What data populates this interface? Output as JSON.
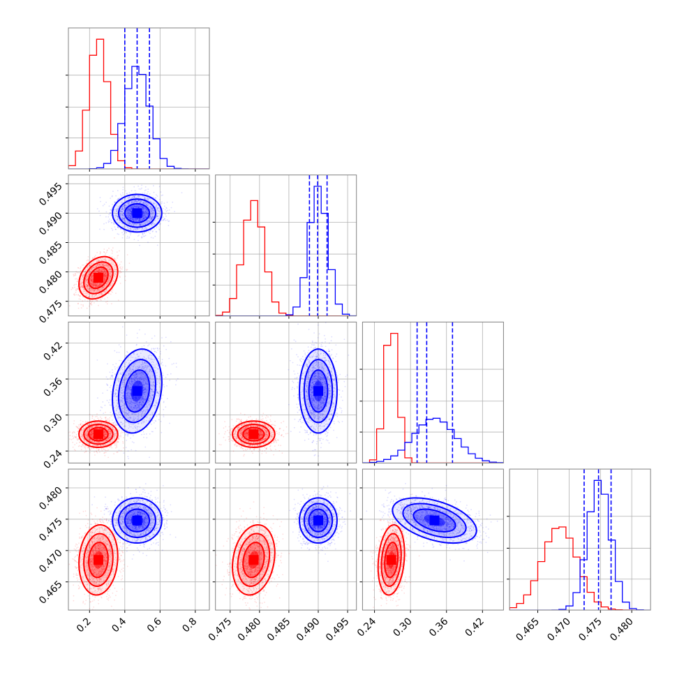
{
  "chart_data": {
    "type": "corner",
    "title": "",
    "grid": true,
    "legend": "none",
    "parameters": [
      {
        "ticks": [
          0.2,
          0.4,
          0.6,
          0.8
        ],
        "tick_labels": [
          "0.2",
          "0.4",
          "0.6",
          "0.8"
        ],
        "range": [
          0.08,
          0.88
        ]
      },
      {
        "ticks": [
          0.475,
          0.48,
          0.485,
          0.49,
          0.495
        ],
        "tick_labels": [
          "0.475",
          "0.480",
          "0.485",
          "0.490",
          "0.495"
        ],
        "range": [
          0.4725,
          0.4965
        ]
      },
      {
        "ticks": [
          0.24,
          0.3,
          0.36,
          0.42
        ],
        "tick_labels": [
          "0.24",
          "0.30",
          "0.36",
          "0.42"
        ],
        "range": [
          0.22,
          0.455
        ]
      },
      {
        "ticks": [
          0.465,
          0.47,
          0.475,
          0.48
        ],
        "tick_labels": [
          "0.465",
          "0.470",
          "0.475",
          "0.480"
        ],
        "range": [
          0.4605,
          0.483
        ]
      }
    ],
    "series": [
      {
        "color": "#ff0000",
        "means": [
          0.25,
          0.479,
          0.268,
          0.4685
        ],
        "sds": [
          0.055,
          0.0018,
          0.011,
          0.0028
        ],
        "correlations": [
          {
            "pair": [
              0,
              1
            ],
            "rho": 0.3
          },
          {
            "pair": [
              0,
              2
            ],
            "rho": 0.0
          },
          {
            "pair": [
              1,
              2
            ],
            "rho": 0.0
          },
          {
            "pair": [
              0,
              3
            ],
            "rho": 0.1
          },
          {
            "pair": [
              1,
              3
            ],
            "rho": 0.2
          },
          {
            "pair": [
              2,
              3
            ],
            "rho": 0.2
          }
        ]
      },
      {
        "color": "#0000ff",
        "means": [
          0.47,
          0.49,
          0.34,
          0.4748
        ],
        "sds": [
          0.07,
          0.0016,
          0.035,
          0.0018
        ],
        "correlations": [
          {
            "pair": [
              0,
              1
            ],
            "rho": 0.0
          },
          {
            "pair": [
              0,
              2
            ],
            "rho": 0.2
          },
          {
            "pair": [
              1,
              2
            ],
            "rho": 0.0
          },
          {
            "pair": [
              0,
              3
            ],
            "rho": 0.0
          },
          {
            "pair": [
              1,
              3
            ],
            "rho": 0.0
          },
          {
            "pair": [
              2,
              3
            ],
            "rho": -0.45
          }
        ],
        "quantiles": [
          [
            0.4,
            0.47,
            0.54
          ],
          [
            0.4885,
            0.4899,
            0.4915
          ],
          [
            0.311,
            0.327,
            0.37
          ],
          [
            0.4724,
            0.4747,
            0.4767
          ]
        ]
      }
    ]
  },
  "colors": {
    "red": "#ff0000",
    "blue": "#0000ff",
    "grid": "#b0b0b0",
    "frame": "#808080"
  }
}
